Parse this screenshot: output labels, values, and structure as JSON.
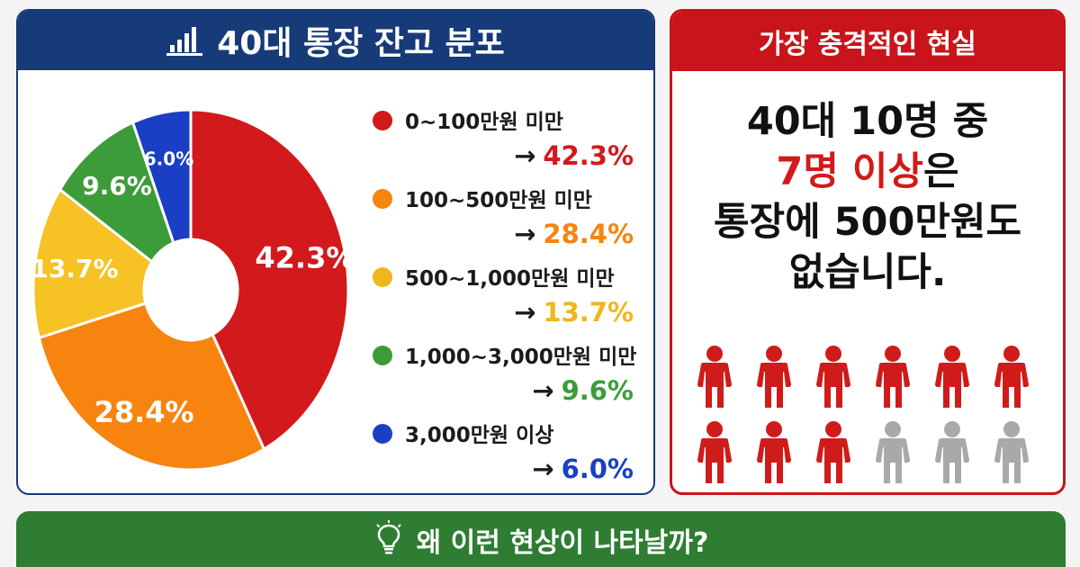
{
  "left_panel": {
    "title": "40대 통장 잔고 분포",
    "icon": "bar-chart-icon",
    "header_color": "#173a78"
  },
  "chart_data": {
    "type": "pie",
    "title": "40대 통장 잔고 분포",
    "categories": [
      "0~100만원 미만",
      "100~500만원 미만",
      "500~1,000만원 미만",
      "1,000~3,000만원 미만",
      "3,000만원 이상"
    ],
    "values": [
      42.3,
      28.4,
      13.7,
      9.6,
      6.0
    ],
    "data_labels": [
      "42.3%",
      "28.4%",
      "13.7%",
      "9.6%",
      "6.0%"
    ],
    "colors": [
      "#d2191c",
      "#f7840f",
      "#f6c224",
      "#3d9c3a",
      "#1a3fc4"
    ],
    "donut": true,
    "legend_position": "right"
  },
  "legend": [
    {
      "label": "0~100만원 미만",
      "arrow": "→",
      "value": "42.3%",
      "color": "#d2191c"
    },
    {
      "label": "100~500만원 미만",
      "arrow": "→",
      "value": "28.4%",
      "color": "#f7840f"
    },
    {
      "label": "500~1,000만원 미만",
      "arrow": "→",
      "value": "13.7%",
      "color": "#f1b61e"
    },
    {
      "label": "1,000~3,000만원 미만",
      "arrow": "→",
      "value": "9.6%",
      "color": "#3d9c3a"
    },
    {
      "label": "3,000만원 이상",
      "arrow": "→",
      "value": "6.0%",
      "color": "#1a3fc4"
    }
  ],
  "right_panel": {
    "title": "가장 충격적인 현실",
    "line1": "40대 10명 중",
    "line2_highlight": "7명 이상",
    "line2_rest": "은",
    "line3": "통장에 500만원도",
    "line4": "없습니다.",
    "accent_color": "#c8141a",
    "people_total": 12,
    "people_highlighted": 9,
    "people_icon": "person-icon"
  },
  "banner": {
    "text": "왜 이런 현상이 나타날까?",
    "icon": "lightbulb-icon",
    "color": "#2e7d32"
  }
}
